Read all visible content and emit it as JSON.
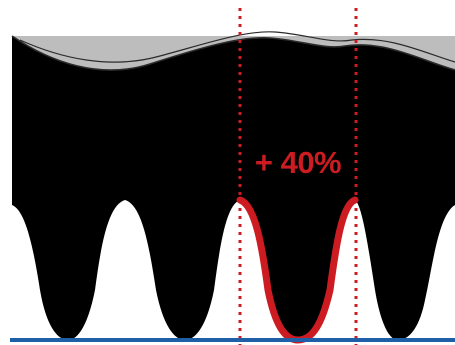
{
  "annotation": {
    "label": "+ 40%"
  },
  "colors": {
    "background": "#ffffff",
    "body": "#000000",
    "top_band": "#bdbdbd",
    "top_band_line": "#2b2b2b",
    "highlight": "#cc1c22",
    "baseline": "#1f5fa8"
  }
}
